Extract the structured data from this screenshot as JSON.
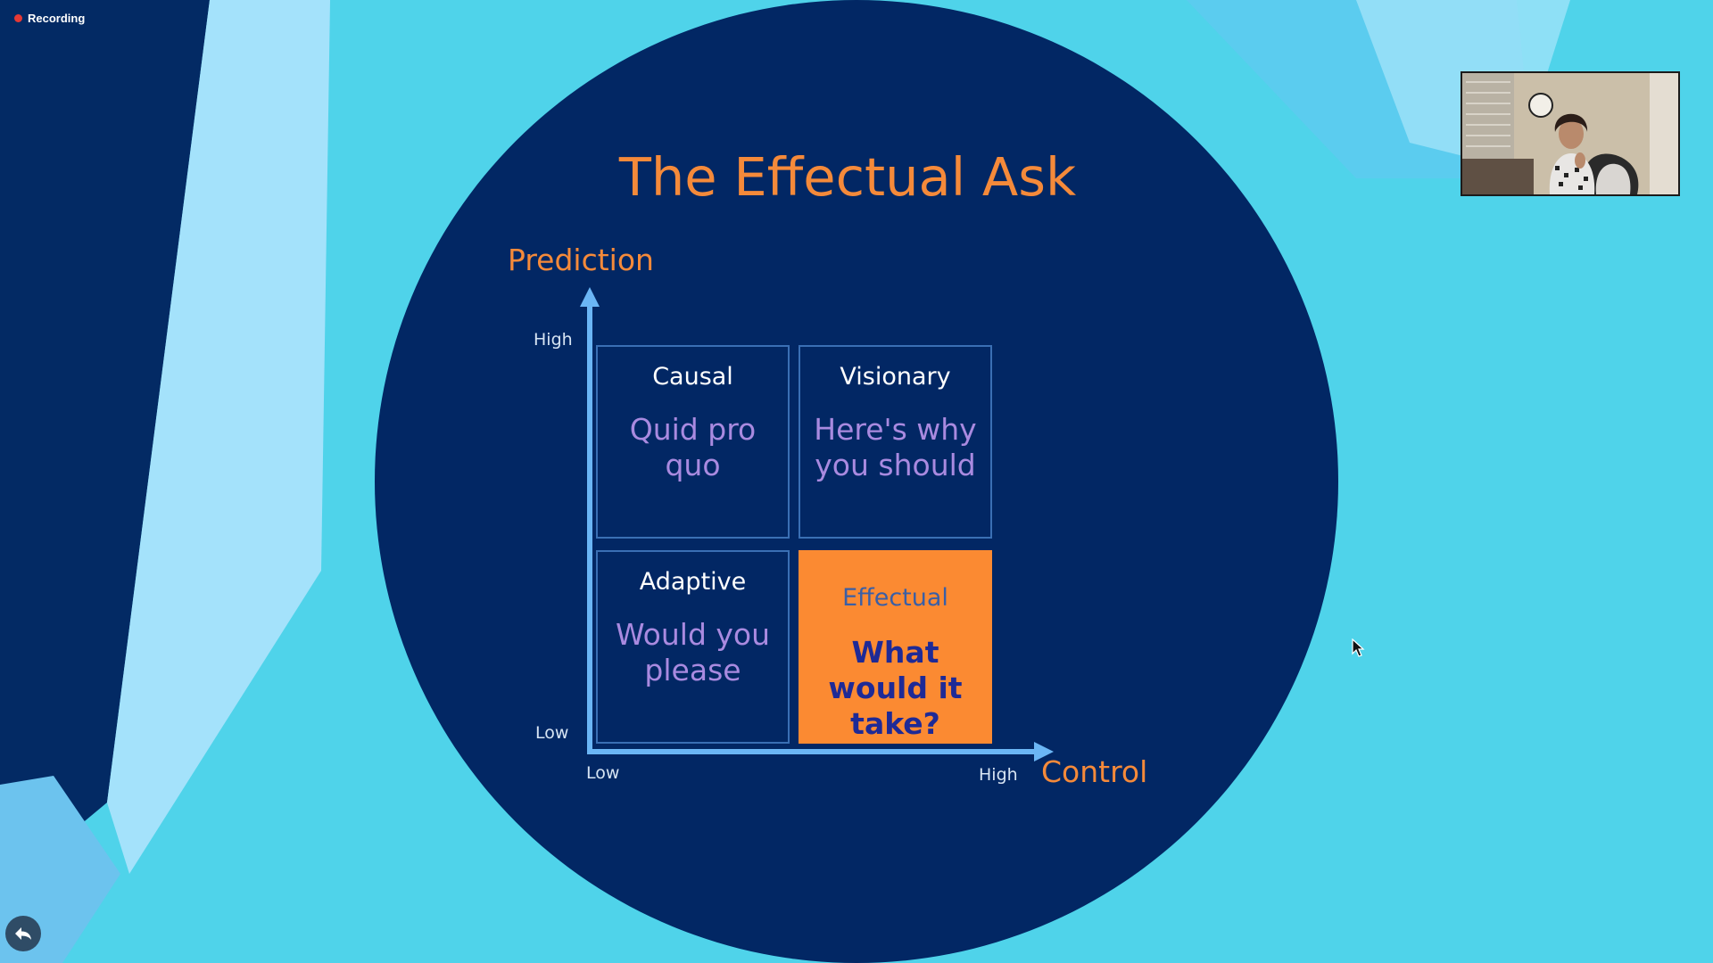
{
  "recording": {
    "label": "Recording"
  },
  "slide": {
    "title": "The Effectual Ask",
    "y_axis": {
      "label": "Prediction",
      "high": "High",
      "low": "Low"
    },
    "x_axis": {
      "label": "Control",
      "low": "Low",
      "high": "High"
    },
    "quadrants": [
      {
        "name": "Causal",
        "ask": "Quid pro quo"
      },
      {
        "name": "Visionary",
        "ask": "Here's why you should"
      },
      {
        "name": "Adaptive",
        "ask": "Would you please"
      },
      {
        "name": "Effectual",
        "ask": "What would it take?"
      }
    ],
    "highlighted_quadrant": "Effectual"
  },
  "colors": {
    "slide_background": "#022764",
    "accent_orange": "#f58a3a",
    "axis_blue": "#6bb6f5",
    "ask_purple": "#a98ae0"
  },
  "icons": {
    "back": "back-arrow-icon",
    "recording": "recording-dot-icon"
  }
}
